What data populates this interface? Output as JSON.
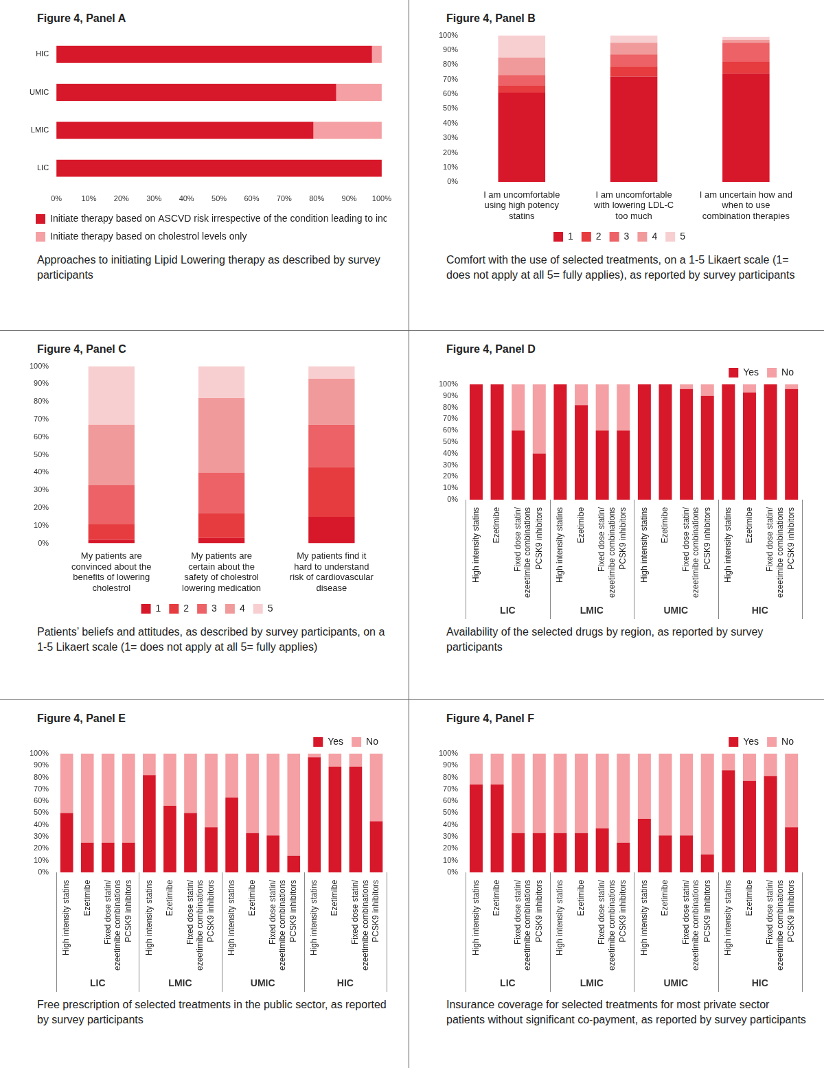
{
  "chart_data": [
    {
      "type": "bar",
      "title": "Figure 4, Panel A",
      "caption": "Approaches to initiating Lipid Lowering therapy as described by survey participants",
      "orientation": "horizontal",
      "stacked": true,
      "grid": false,
      "legend": "bottom-left",
      "categories": [
        "HIC",
        "UMIC",
        "LMIC",
        "LIC"
      ],
      "series": [
        {
          "name": "Initiate therapy based on ASCVD risk irrespective of the condition leading to increase risk",
          "color": "#d7182a",
          "values": [
            97,
            86,
            79,
            100
          ]
        },
        {
          "name": "Initiate therapy based on cholestrol levels only",
          "color": "#f4a0a4",
          "values": [
            3,
            14,
            21,
            0
          ]
        }
      ],
      "xlim": [
        0,
        100
      ],
      "xticks": [
        {
          "value": 0,
          "label": "0%"
        },
        {
          "value": 10,
          "label": "10%"
        },
        {
          "value": 20,
          "label": "20%"
        },
        {
          "value": 30,
          "label": "30%"
        },
        {
          "value": 40,
          "label": "40%"
        },
        {
          "value": 50,
          "label": "50%"
        },
        {
          "value": 60,
          "label": "60%"
        },
        {
          "value": 70,
          "label": "70%"
        },
        {
          "value": 80,
          "label": "80%"
        },
        {
          "value": 90,
          "label": "90%"
        },
        {
          "value": 100,
          "label": "100%"
        }
      ]
    },
    {
      "type": "bar",
      "title": "Figure 4, Panel B",
      "caption": "Comfort with the use of selected treatments, on a 1-5 Likaert scale (1= does not apply at all 5= fully applies), as reported by survey participants",
      "stacked": true,
      "grid": false,
      "legend": "bottom",
      "categories": [
        "I am uncomfortable using high potency statins",
        "I am uncomfortable with lowering LDL-C too much",
        "I am uncertain how and when to use combination therapies"
      ],
      "series": [
        {
          "name": "1",
          "color": "#d7182a",
          "values": [
            61,
            72,
            74
          ]
        },
        {
          "name": "2",
          "color": "#e63b3f",
          "values": [
            5,
            7,
            8
          ]
        },
        {
          "name": "3",
          "color": "#ec6266",
          "values": [
            7,
            8,
            13
          ]
        },
        {
          "name": "4",
          "color": "#f19a9b",
          "values": [
            12,
            8,
            2
          ]
        },
        {
          "name": "5",
          "color": "#f8cfd1",
          "values": [
            15,
            5,
            2
          ]
        }
      ],
      "ylim": [
        0,
        100
      ],
      "yticks": [
        {
          "value": 0,
          "label": "0%"
        },
        {
          "value": 10,
          "label": "10%"
        },
        {
          "value": 20,
          "label": "20%"
        },
        {
          "value": 30,
          "label": "30%"
        },
        {
          "value": 40,
          "label": "40%"
        },
        {
          "value": 50,
          "label": "50%"
        },
        {
          "value": 60,
          "label": "60%"
        },
        {
          "value": 70,
          "label": "70%"
        },
        {
          "value": 80,
          "label": "80%"
        },
        {
          "value": 90,
          "label": "90%"
        },
        {
          "value": 100,
          "label": "100%"
        }
      ]
    },
    {
      "type": "bar",
      "title": "Figure 4, Panel C",
      "caption": "Patients’ beliefs and attitudes, as described by survey participants, on a 1-5 Likaert scale (1= does not apply at all 5= fully applies)",
      "stacked": true,
      "grid": false,
      "legend": "bottom",
      "categories": [
        "My patients are convinced about the benefits of lowering cholestrol",
        "My patients are certain about the safety of cholestrol lowering medication",
        "My patients find it hard to understand risk of cardiovascular disease"
      ],
      "series": [
        {
          "name": "1",
          "color": "#d7182a",
          "values": [
            2,
            3,
            15
          ]
        },
        {
          "name": "2",
          "color": "#e63b3f",
          "values": [
            9,
            14,
            28
          ]
        },
        {
          "name": "3",
          "color": "#ec6266",
          "values": [
            22,
            23,
            24
          ]
        },
        {
          "name": "4",
          "color": "#f19a9b",
          "values": [
            34,
            42,
            26
          ]
        },
        {
          "name": "5",
          "color": "#f8cfd1",
          "values": [
            33,
            18,
            7
          ]
        }
      ],
      "ylim": [
        0,
        100
      ],
      "yticks": [
        {
          "value": 0,
          "label": "0%"
        },
        {
          "value": 10,
          "label": "10%"
        },
        {
          "value": 20,
          "label": "20%"
        },
        {
          "value": 30,
          "label": "30%"
        },
        {
          "value": 40,
          "label": "40%"
        },
        {
          "value": 50,
          "label": "50%"
        },
        {
          "value": 60,
          "label": "60%"
        },
        {
          "value": 70,
          "label": "70%"
        },
        {
          "value": 80,
          "label": "80%"
        },
        {
          "value": 90,
          "label": "90%"
        },
        {
          "value": 100,
          "label": "100%"
        }
      ]
    },
    {
      "type": "bar",
      "title": "Figure 4, Panel D",
      "caption": "Availability of the selected drugs by region, as reported by survey participants",
      "stacked": true,
      "grid": false,
      "legend": "top-right",
      "groups": [
        "LIC",
        "LMIC",
        "UMIC",
        "HIC"
      ],
      "categories": [
        "High intensity statins",
        "Ezetimibe",
        "Fixed dose statin/ ezeetimibe combinations",
        "PCSK9 inhibitors",
        "High intensity statins",
        "Ezetimibe",
        "Fixed dose statin/ ezeetimibe combinations",
        "PCSK9 inhibitors",
        "High intensity statins",
        "Ezetimibe",
        "Fixed dose statin/ ezeetimibe combinations",
        "PCSK9 inhibitors",
        "High intensity statins",
        "Ezetimibe",
        "Fixed dose statin/ ezeetimibe combinations",
        "PCSK9 inhibitors"
      ],
      "series": [
        {
          "name": "Yes",
          "color": "#d7182a",
          "values": [
            100,
            100,
            60,
            40,
            100,
            82,
            60,
            60,
            100,
            100,
            96,
            90,
            100,
            93,
            100,
            96
          ]
        },
        {
          "name": "No",
          "color": "#f4a0a4",
          "values": [
            0,
            0,
            40,
            60,
            0,
            18,
            40,
            40,
            0,
            0,
            4,
            10,
            0,
            7,
            0,
            4
          ]
        }
      ],
      "ylim": [
        0,
        100
      ],
      "yticks": [
        {
          "value": 0,
          "label": "0%"
        },
        {
          "value": 10,
          "label": "10%"
        },
        {
          "value": 20,
          "label": "20%"
        },
        {
          "value": 30,
          "label": "30%"
        },
        {
          "value": 40,
          "label": "40%"
        },
        {
          "value": 50,
          "label": "50%"
        },
        {
          "value": 60,
          "label": "60%"
        },
        {
          "value": 70,
          "label": "70%"
        },
        {
          "value": 80,
          "label": "80%"
        },
        {
          "value": 90,
          "label": "90%"
        },
        {
          "value": 100,
          "label": "100%"
        }
      ]
    },
    {
      "type": "bar",
      "title": "Figure 4, Panel E",
      "caption": "Free prescription of selected treatments in the public sector, as reported by survey participants",
      "stacked": true,
      "grid": false,
      "legend": "top-right",
      "groups": [
        "LIC",
        "LMIC",
        "UMIC",
        "HIC"
      ],
      "categories": [
        "High intensity statins",
        "Ezetimibe",
        "Fixed dose statin/ ezeetimibe combinations",
        "PCSK9 inhibitors",
        "High intensity statins",
        "Ezetimibe",
        "Fixed dose statin/ ezeetimibe combinations",
        "PCSK9 inhibitors",
        "High intensity statins",
        "Ezetimibe",
        "Fixed dose statin/ ezeetimibe combinations",
        "PCSK9 inhibitors",
        "High intensity statins",
        "Ezetimibe",
        "Fixed dose statin/ ezeetimibe combinations",
        "PCSK9 inhibitors"
      ],
      "series": [
        {
          "name": "Yes",
          "color": "#d7182a",
          "values": [
            50,
            25,
            25,
            25,
            82,
            56,
            50,
            38,
            63,
            33,
            31,
            14,
            97,
            89,
            89,
            43
          ]
        },
        {
          "name": "No",
          "color": "#f4a0a4",
          "values": [
            50,
            75,
            75,
            75,
            18,
            44,
            50,
            62,
            37,
            67,
            69,
            86,
            3,
            11,
            11,
            57
          ]
        }
      ],
      "ylim": [
        0,
        100
      ],
      "yticks": [
        {
          "value": 0,
          "label": "0%"
        },
        {
          "value": 10,
          "label": "10%"
        },
        {
          "value": 20,
          "label": "20%"
        },
        {
          "value": 30,
          "label": "30%"
        },
        {
          "value": 40,
          "label": "40%"
        },
        {
          "value": 50,
          "label": "50%"
        },
        {
          "value": 60,
          "label": "60%"
        },
        {
          "value": 70,
          "label": "70%"
        },
        {
          "value": 80,
          "label": "80%"
        },
        {
          "value": 90,
          "label": "90%"
        },
        {
          "value": 100,
          "label": "100%"
        }
      ]
    },
    {
      "type": "bar",
      "title": "Figure 4, Panel F",
      "caption": "Insurance coverage for selected treatments for most private sector patients without significant co-payment, as reported by survey participants",
      "stacked": true,
      "grid": false,
      "legend": "top-right",
      "groups": [
        "LIC",
        "LMIC",
        "UMIC",
        "HIC"
      ],
      "categories": [
        "High intensity statins",
        "Ezetimibe",
        "Fixed dose statin/ ezeetimibe combinations",
        "PCSK9 inhibitors",
        "High intensity statins",
        "Ezetimibe",
        "Fixed dose statin/ ezeetimibe combinations",
        "PCSK9 inhibitors",
        "High intensity statins",
        "Ezetimibe",
        "Fixed dose statin/ ezeetimibe combinations",
        "PCSK9 inhibitors",
        "High intensity statins",
        "Ezetimibe",
        "Fixed dose statin/ ezeetimibe combinations",
        "PCSK9 inhibitors"
      ],
      "series": [
        {
          "name": "Yes",
          "color": "#d7182a",
          "values": [
            74,
            74,
            33,
            33,
            33,
            33,
            37,
            25,
            45,
            31,
            31,
            15,
            86,
            77,
            81,
            38
          ]
        },
        {
          "name": "No",
          "color": "#f4a0a4",
          "values": [
            26,
            26,
            67,
            67,
            67,
            67,
            63,
            75,
            55,
            69,
            69,
            85,
            14,
            23,
            19,
            62
          ]
        }
      ],
      "ylim": [
        0,
        100
      ],
      "yticks": [
        {
          "value": 0,
          "label": "0%"
        },
        {
          "value": 10,
          "label": "10%"
        },
        {
          "value": 20,
          "label": "20%"
        },
        {
          "value": 30,
          "label": "30%"
        },
        {
          "value": 40,
          "label": "40%"
        },
        {
          "value": 50,
          "label": "50%"
        },
        {
          "value": 60,
          "label": "60%"
        },
        {
          "value": 70,
          "label": "70%"
        },
        {
          "value": 80,
          "label": "80%"
        },
        {
          "value": 90,
          "label": "90%"
        },
        {
          "value": 100,
          "label": "100%"
        }
      ]
    }
  ]
}
